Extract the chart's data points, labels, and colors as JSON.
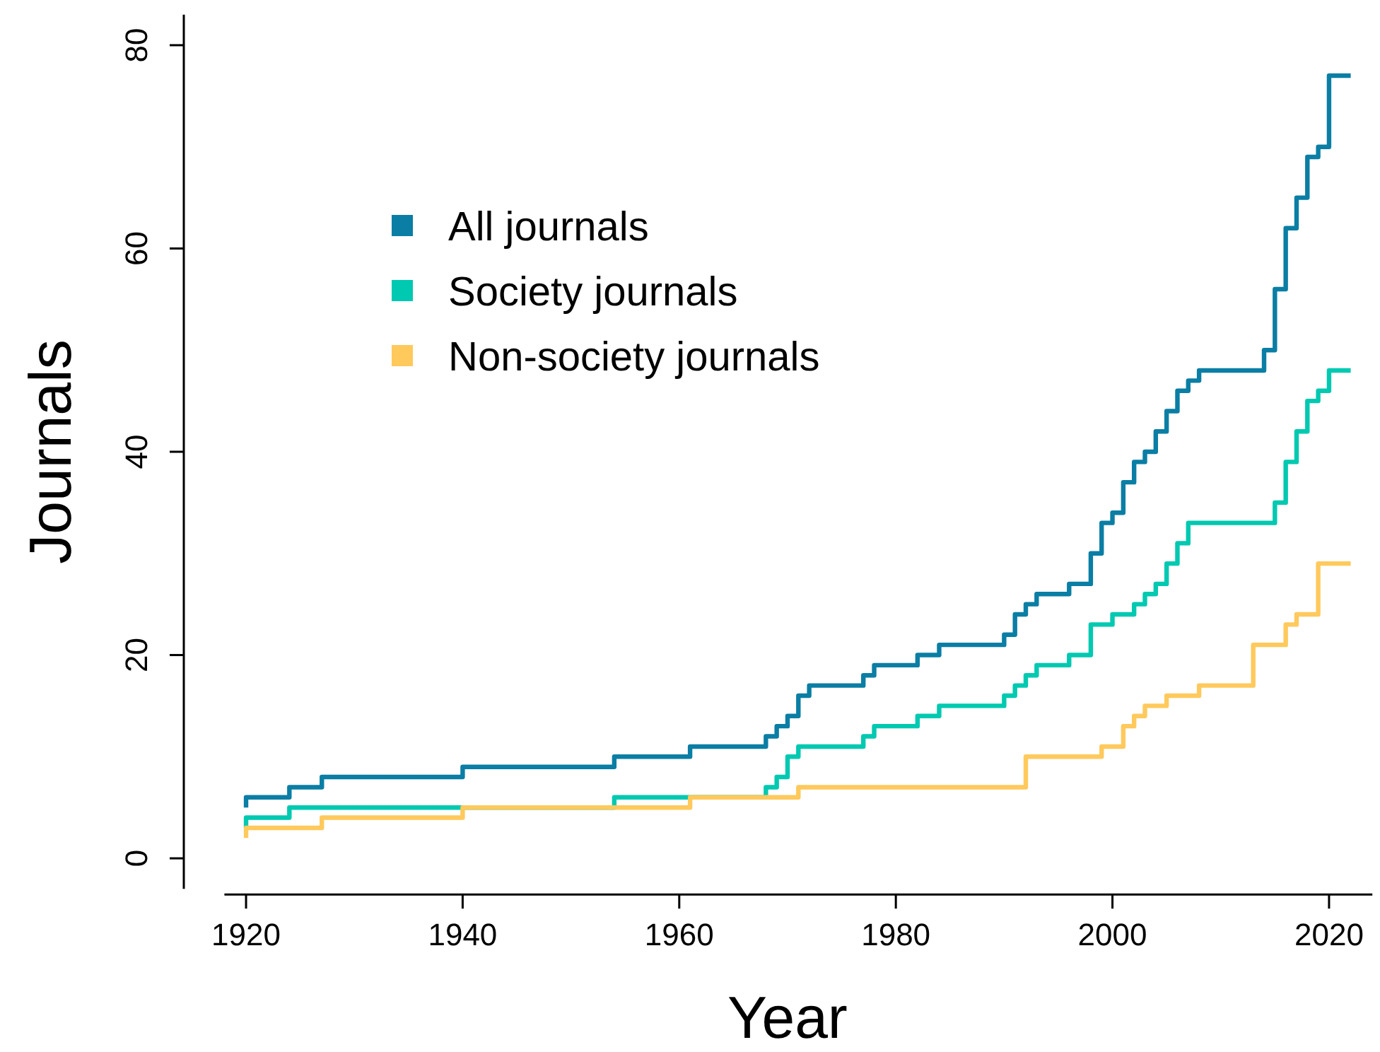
{
  "chart_data": {
    "type": "step",
    "xlabel": "Year",
    "ylabel": "Journals",
    "xlim": [
      1918,
      2024
    ],
    "ylim": [
      -3,
      83
    ],
    "xticks": [
      1920,
      1940,
      1960,
      1980,
      2000,
      2020
    ],
    "yticks": [
      0,
      20,
      40,
      60,
      80
    ],
    "legend": "top left",
    "grid": false,
    "series": [
      {
        "name": "All journals",
        "color": "#0a7ea4",
        "x": [
          1920,
          1920,
          1924,
          1927,
          1940,
          1954,
          1961,
          1968,
          1969,
          1970,
          1971,
          1972,
          1977,
          1978,
          1982,
          1984,
          1990,
          1991,
          1992,
          1993,
          1996,
          1998,
          1999,
          2000,
          2001,
          2002,
          2003,
          2004,
          2005,
          2006,
          2007,
          2008,
          2014,
          2015,
          2016,
          2017,
          2018,
          2019,
          2020,
          2022
        ],
        "values": [
          5,
          6,
          7,
          8,
          9,
          10,
          11,
          12,
          13,
          14,
          16,
          17,
          18,
          19,
          20,
          21,
          22,
          24,
          25,
          26,
          27,
          30,
          33,
          34,
          37,
          39,
          40,
          42,
          44,
          46,
          47,
          48,
          50,
          56,
          62,
          65,
          69,
          70,
          77,
          77
        ]
      },
      {
        "name": "Society journals",
        "color": "#00c9b1",
        "x": [
          1920,
          1920,
          1924,
          1954,
          1968,
          1969,
          1970,
          1971,
          1977,
          1978,
          1982,
          1984,
          1990,
          1991,
          1992,
          1993,
          1996,
          1998,
          2000,
          2002,
          2003,
          2004,
          2005,
          2006,
          2007,
          2015,
          2016,
          2017,
          2018,
          2019,
          2020,
          2022
        ],
        "values": [
          3,
          4,
          5,
          6,
          7,
          8,
          10,
          11,
          12,
          13,
          14,
          15,
          16,
          17,
          18,
          19,
          20,
          23,
          24,
          25,
          26,
          27,
          29,
          31,
          33,
          35,
          39,
          42,
          45,
          46,
          48,
          48
        ]
      },
      {
        "name": "Non-society journals",
        "color": "#ffc95c",
        "x": [
          1920,
          1920,
          1927,
          1940,
          1961,
          1971,
          1992,
          1999,
          2001,
          2002,
          2003,
          2005,
          2008,
          2013,
          2016,
          2017,
          2019,
          2022
        ],
        "values": [
          2,
          3,
          4,
          5,
          6,
          7,
          10,
          11,
          13,
          14,
          15,
          16,
          17,
          21,
          23,
          24,
          29,
          29
        ]
      }
    ]
  }
}
